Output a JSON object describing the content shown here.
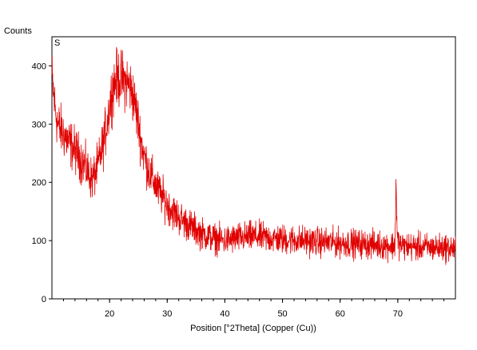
{
  "chart_data": {
    "type": "line",
    "title": "",
    "sample_label": "S",
    "xlabel": "Position [°2Theta] (Copper (Cu))",
    "ylabel": "Counts",
    "xlim": [
      10,
      80
    ],
    "ylim": [
      0,
      450
    ],
    "x_ticks": [
      20,
      30,
      40,
      50,
      60,
      70
    ],
    "y_ticks": [
      0,
      100,
      200,
      300,
      400
    ],
    "grid": false,
    "legend": "none",
    "line_color": "#e00000",
    "series": [
      {
        "x": [
          10,
          10.5,
          11,
          11.5,
          12,
          12.5,
          13,
          13.5,
          14,
          14.5,
          15,
          15.5,
          16,
          16.5,
          17,
          17.5,
          18,
          18.5,
          19,
          19.5,
          20,
          20.5,
          21,
          21.5,
          22,
          22.5,
          23,
          23.5,
          24,
          24.5,
          25,
          25.5,
          26,
          26.5,
          27,
          27.5,
          28,
          28.5,
          29,
          29.5,
          30,
          31,
          32,
          33,
          34,
          35,
          36,
          37,
          38,
          39,
          40,
          41,
          42,
          43,
          44,
          45,
          46,
          47,
          48,
          49,
          50,
          52,
          54,
          56,
          58,
          60,
          62,
          64,
          66,
          68,
          69,
          69.5,
          69.7,
          69.9,
          70.5,
          71,
          72,
          74,
          76,
          78,
          79,
          80
        ],
        "values": [
          380,
          330,
          300,
          290,
          285,
          275,
          268,
          262,
          255,
          248,
          240,
          232,
          222,
          212,
          205,
          215,
          230,
          250,
          270,
          300,
          330,
          360,
          375,
          380,
          378,
          375,
          372,
          365,
          350,
          330,
          300,
          270,
          245,
          230,
          215,
          205,
          195,
          185,
          178,
          170,
          162,
          150,
          140,
          132,
          125,
          118,
          112,
          108,
          104,
          102,
          100,
          102,
          104,
          105,
          106,
          107,
          106,
          105,
          104,
          103,
          102,
          101,
          100,
          98,
          97,
          96,
          95,
          94,
          93,
          92,
          91,
          92,
          205,
          100,
          92,
          91,
          90,
          89,
          88,
          88,
          87,
          86
        ]
      }
    ]
  }
}
